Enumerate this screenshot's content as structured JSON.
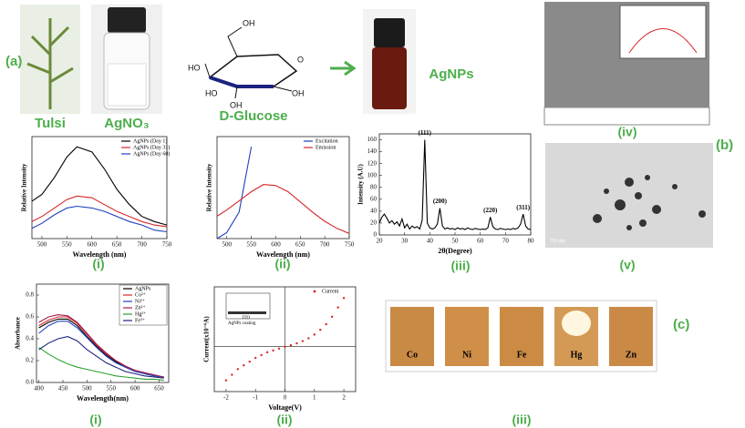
{
  "labels": {
    "a": "(a)",
    "b": "(b)",
    "c": "(c)",
    "tulsi": "Tulsi",
    "agno3": "AgNO₃",
    "glucose": "D-Glucose",
    "agnps": "AgNPs",
    "glucose_atoms": [
      "OH",
      "O",
      "HO",
      "HO",
      "OH",
      "OH"
    ],
    "iv": "(iv)",
    "v": "(v)",
    "i_top": "(i)",
    "ii_top": "(ii)",
    "iii_top": "(iii)",
    "i_bottom": "(i)",
    "ii_bottom": "(ii)",
    "iii_bottom": "(iii)",
    "tem_scale": "70 nm",
    "ito": "ITO",
    "coating": "AgNPs coating",
    "tiles": [
      "Co",
      "Ni",
      "Fe",
      "Hg",
      "Zn"
    ]
  },
  "chart_data": [
    {
      "type": "line",
      "x_label": "Wavelength (nm)",
      "y_label": "Relative Intensity",
      "x": [
        480,
        500,
        525,
        550,
        570,
        600,
        625,
        650,
        675,
        700,
        725,
        750
      ],
      "xlim": [
        480,
        750
      ],
      "xticks": [
        500,
        550,
        600,
        650,
        700,
        750
      ],
      "ylim": [
        0,
        6
      ],
      "legend": "upper right",
      "series": [
        {
          "name": "AgNPs (Day 1)",
          "color": "#000000",
          "values": [
            2.2,
            2.6,
            3.6,
            4.8,
            5.4,
            5.1,
            4.1,
            2.9,
            2.0,
            1.3,
            1.0,
            0.8
          ]
        },
        {
          "name": "AgNPs (Day 31)",
          "color": "#d62728",
          "values": [
            1.0,
            1.3,
            1.8,
            2.3,
            2.5,
            2.4,
            2.0,
            1.6,
            1.3,
            1.0,
            0.8,
            0.7
          ]
        },
        {
          "name": "AgNPs (Day 60)",
          "color": "#1f3fbf",
          "values": [
            0.6,
            0.9,
            1.4,
            1.8,
            1.9,
            1.8,
            1.6,
            1.3,
            1.0,
            0.8,
            0.5,
            0.4
          ]
        }
      ]
    },
    {
      "type": "line",
      "x_label": "Wavelength (nm)",
      "y_label": "Relative Intensity",
      "x": [
        480,
        500,
        525,
        550,
        575,
        600,
        625,
        650,
        675,
        700,
        725,
        750
      ],
      "xlim": [
        480,
        750
      ],
      "xticks": [
        500,
        550,
        600,
        650,
        700,
        750
      ],
      "ylim": [
        0,
        10
      ],
      "legend": "upper right",
      "series": [
        {
          "name": "Excitation",
          "color": "#1f3fbf",
          "values": [
            0,
            0.6,
            2.6,
            9.0,
            null,
            null,
            null,
            null,
            null,
            null,
            null,
            null
          ]
        },
        {
          "name": "Emission",
          "color": "#d62728",
          "values": [
            2.2,
            2.8,
            3.7,
            4.6,
            5.3,
            5.2,
            4.6,
            3.6,
            2.6,
            1.7,
            1.0,
            0.5
          ]
        }
      ]
    },
    {
      "type": "line",
      "x_label": "2θ(Degree)",
      "y_label": "Intensity (A.U)",
      "x": [
        20,
        21,
        22,
        23,
        24,
        25,
        26,
        27,
        28,
        29,
        30,
        31,
        32,
        33,
        34,
        35,
        36,
        37,
        38,
        39,
        40,
        41,
        42,
        43,
        44,
        45,
        46,
        47,
        48,
        49,
        50,
        51,
        52,
        53,
        54,
        55,
        56,
        57,
        58,
        59,
        60,
        61,
        62,
        63,
        64,
        65,
        66,
        67,
        68,
        69,
        70,
        71,
        72,
        73,
        74,
        75,
        76,
        77,
        78,
        79,
        80
      ],
      "xlim": [
        20,
        80
      ],
      "xticks": [
        20,
        30,
        40,
        50,
        60,
        70,
        80
      ],
      "ylim": [
        0,
        170
      ],
      "yticks": [
        0,
        20,
        40,
        60,
        80,
        100,
        120,
        140,
        160
      ],
      "annotations": [
        {
          "text": "(111)",
          "x": 38
        },
        {
          "text": "(200)",
          "x": 44
        },
        {
          "text": "(220)",
          "x": 64
        },
        {
          "text": "(311)",
          "x": 77
        }
      ],
      "series": [
        {
          "color": "#000000",
          "values": [
            20,
            30,
            35,
            28,
            20,
            24,
            18,
            22,
            15,
            27,
            12,
            18,
            10,
            15,
            12,
            14,
            10,
            25,
            160,
            20,
            12,
            10,
            12,
            18,
            45,
            15,
            10,
            12,
            10,
            11,
            9,
            12,
            10,
            11,
            9,
            12,
            10,
            9,
            11,
            10,
            9,
            10,
            9,
            12,
            30,
            14,
            10,
            9,
            11,
            10,
            9,
            10,
            9,
            11,
            10,
            12,
            18,
            35,
            15,
            10,
            9
          ]
        }
      ]
    },
    {
      "type": "line",
      "x_label": "Wavelength(nm)",
      "y_label": "Absorbance",
      "x": [
        400,
        420,
        440,
        460,
        480,
        500,
        520,
        540,
        560,
        580,
        600,
        620,
        640,
        660
      ],
      "xlim": [
        395,
        670
      ],
      "xticks": [
        400,
        450,
        500,
        550,
        600,
        650
      ],
      "ylim": [
        0,
        0.9
      ],
      "yticks": [
        {
          "value": 0,
          "label": "0.0"
        },
        0.2,
        0.4,
        0.6,
        0.8
      ],
      "legend": "upper right",
      "series": [
        {
          "name": "AgNPs",
          "color": "#000000",
          "values": [
            0.5,
            0.55,
            0.58,
            0.58,
            0.52,
            0.42,
            0.33,
            0.25,
            0.19,
            0.14,
            0.11,
            0.08,
            0.06,
            0.05
          ]
        },
        {
          "name": "Co²⁺",
          "color": "#d62728",
          "values": [
            0.52,
            0.57,
            0.6,
            0.6,
            0.54,
            0.44,
            0.34,
            0.26,
            0.2,
            0.15,
            0.11,
            0.08,
            0.06,
            0.05
          ]
        },
        {
          "name": "Ni²⁺",
          "color": "#1f3fbf",
          "values": [
            0.45,
            0.52,
            0.56,
            0.56,
            0.5,
            0.41,
            0.32,
            0.24,
            0.18,
            0.14,
            0.1,
            0.08,
            0.06,
            0.05
          ]
        },
        {
          "name": "Zn²⁺",
          "color": "#a0204f",
          "values": [
            0.55,
            0.6,
            0.62,
            0.61,
            0.55,
            0.45,
            0.35,
            0.27,
            0.2,
            0.15,
            0.11,
            0.09,
            0.07,
            0.05
          ]
        },
        {
          "name": "Hg²⁺",
          "color": "#2ca02c",
          "values": [
            0.32,
            0.26,
            0.21,
            0.17,
            0.14,
            0.12,
            0.1,
            0.08,
            0.06,
            0.05,
            0.04,
            0.03,
            0.03,
            0.02
          ]
        },
        {
          "name": "Fe³⁺",
          "color": "#1a237e",
          "values": [
            0.3,
            0.36,
            0.4,
            0.42,
            0.38,
            0.3,
            0.24,
            0.18,
            0.14,
            0.1,
            0.08,
            0.06,
            0.05,
            0.04
          ]
        }
      ]
    },
    {
      "type": "scatter",
      "x_label": "Voltage(V)",
      "y_label": "Current(x10⁻⁶A)",
      "zero_axes": true,
      "x": [
        -2,
        -1.8,
        -1.6,
        -1.4,
        -1.2,
        -1,
        -0.8,
        -0.6,
        -0.4,
        -0.2,
        0,
        0.2,
        0.4,
        0.6,
        0.8,
        1,
        1.2,
        1.4,
        1.6,
        1.8,
        2
      ],
      "xlim": [
        -2.4,
        2.4
      ],
      "xticks": [
        -2,
        -1,
        0,
        1,
        2
      ],
      "ylim": [
        -2.4,
        3.2
      ],
      "legend": "upper right",
      "series": [
        {
          "name": "Current",
          "color": "#d62728",
          "values": [
            -1.8,
            -1.5,
            -1.2,
            -1.0,
            -0.8,
            -0.6,
            -0.45,
            -0.3,
            -0.2,
            -0.1,
            0,
            0.08,
            0.18,
            0.3,
            0.45,
            0.65,
            0.9,
            1.2,
            1.6,
            2.1,
            2.6
          ]
        }
      ]
    }
  ]
}
